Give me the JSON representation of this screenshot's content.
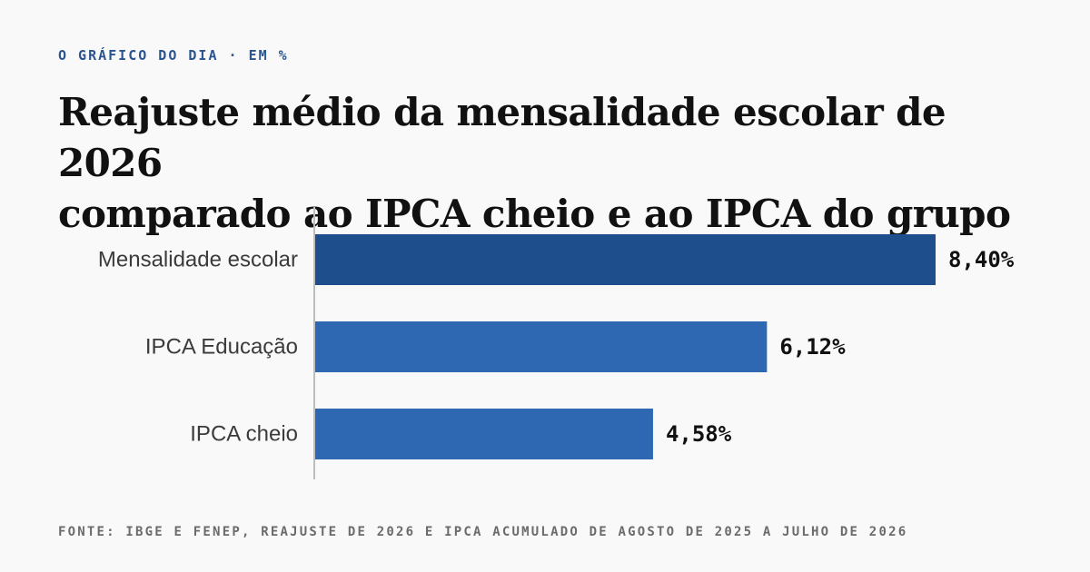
{
  "kicker": "O GRÁFICO DO DIA · EM %",
  "title_line1": "Reajuste médio da mensalidade escolar de 2026",
  "title_line2": "comparado ao IPCA cheio e ao IPCA do grupo",
  "source": "FONTE: IBGE E FENEP, REAJUSTE DE 2026 E IPCA ACUMULADO DE AGOSTO DE 2025 A JULHO DE 2026",
  "colors": {
    "highlight": "#1f4e8c",
    "bar": "#2e68b2",
    "axis": "#bdbdbd"
  },
  "chart_data": {
    "type": "bar",
    "orientation": "horizontal",
    "categories": [
      "Mensalidade escolar",
      "IPCA Educação",
      "IPCA cheio"
    ],
    "values": [
      8.4,
      6.12,
      4.58
    ],
    "value_labels": [
      "8,40%",
      "6,12%",
      "4,58%"
    ],
    "highlight_index": 0,
    "xlim": [
      0,
      8.4
    ],
    "grid": false
  }
}
